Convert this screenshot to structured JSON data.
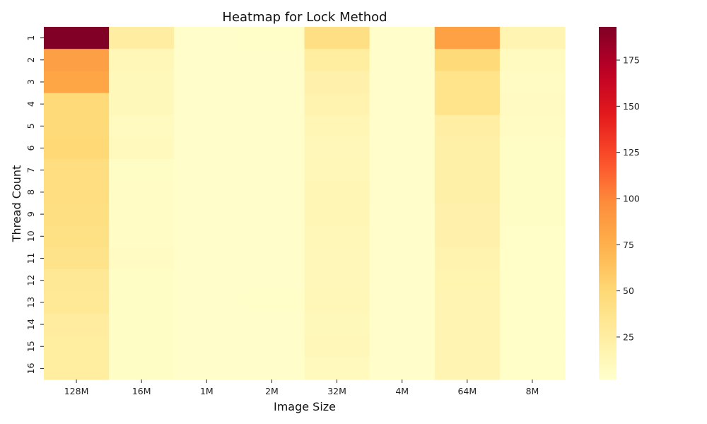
{
  "chart_data": {
    "type": "heatmap",
    "title": "Heatmap for Lock Method",
    "xlabel": "Image Size",
    "ylabel": "Thread Count",
    "x_categories": [
      "128M",
      "16M",
      "1M",
      "2M",
      "32M",
      "4M",
      "64M",
      "8M"
    ],
    "y_categories": [
      "1",
      "2",
      "3",
      "4",
      "5",
      "6",
      "7",
      "8",
      "9",
      "10",
      "11",
      "12",
      "13",
      "14",
      "15",
      "16"
    ],
    "values": [
      [
        193,
        25,
        3,
        4,
        42,
        3,
        85,
        16
      ],
      [
        86,
        13,
        3,
        3,
        26,
        3,
        48,
        9
      ],
      [
        82,
        11,
        3,
        3,
        20,
        3,
        37,
        7
      ],
      [
        48,
        11,
        3,
        3,
        18,
        3,
        37,
        8
      ],
      [
        48,
        9,
        3,
        3,
        14,
        3,
        24,
        7
      ],
      [
        50,
        10,
        3,
        3,
        12,
        3,
        22,
        5
      ],
      [
        44,
        5,
        3,
        3,
        13,
        3,
        22,
        5
      ],
      [
        44,
        6,
        3,
        3,
        15,
        3,
        22,
        5
      ],
      [
        43,
        6,
        3,
        3,
        14,
        3,
        20,
        5
      ],
      [
        41,
        6,
        3,
        3,
        13,
        3,
        20,
        4
      ],
      [
        38,
        7,
        3,
        3,
        12,
        3,
        18,
        4
      ],
      [
        32,
        5,
        3,
        3,
        12,
        3,
        17,
        4
      ],
      [
        31,
        5,
        3,
        4,
        13,
        3,
        16,
        4
      ],
      [
        27,
        5,
        3,
        3,
        11,
        3,
        16,
        4
      ],
      [
        26,
        5,
        3,
        3,
        12,
        3,
        16,
        4
      ],
      [
        26,
        5,
        3,
        3,
        10,
        3,
        16,
        4
      ]
    ],
    "colormap": "YlOrRd",
    "colorbar": {
      "min": 2,
      "max": 193,
      "ticks": [
        25,
        50,
        75,
        100,
        125,
        150,
        175
      ]
    },
    "grid": false,
    "legend": "colorbar right"
  }
}
